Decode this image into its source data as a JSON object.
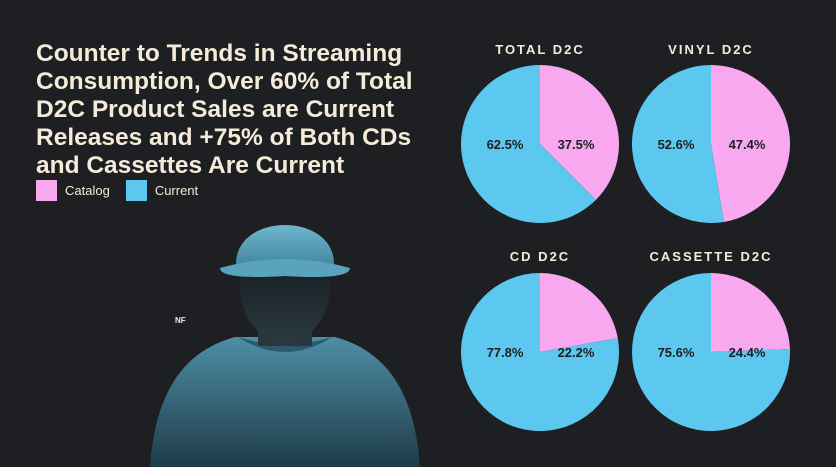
{
  "title": "Counter to Trends in Streaming Consumption, Over 60% of Total D2C Product Sales are Current Releases and +75% of Both CDs and Cassettes Are Current",
  "legend": [
    {
      "label": "Catalog",
      "color": "#f7a8ee"
    },
    {
      "label": "Current",
      "color": "#5cc7ef"
    }
  ],
  "photo": {
    "badge": "NF"
  },
  "chart_data": [
    {
      "type": "pie",
      "title": "TOTAL D2C",
      "slices": [
        {
          "label": "Catalog",
          "value": 37.5,
          "display": "37.5%"
        },
        {
          "label": "Current",
          "value": 62.5,
          "display": "62.5%"
        }
      ]
    },
    {
      "type": "pie",
      "title": "VINYL D2C",
      "slices": [
        {
          "label": "Catalog",
          "value": 47.4,
          "display": "47.4%"
        },
        {
          "label": "Current",
          "value": 52.6,
          "display": "52.6%"
        }
      ]
    },
    {
      "type": "pie",
      "title": "CD D2C",
      "slices": [
        {
          "label": "Catalog",
          "value": 22.2,
          "display": "22.2%"
        },
        {
          "label": "Current",
          "value": 77.8,
          "display": "77.8%"
        }
      ]
    },
    {
      "type": "pie",
      "title": "CASSETTE D2C",
      "slices": [
        {
          "label": "Catalog",
          "value": 24.4,
          "display": "24.4%"
        },
        {
          "label": "Current",
          "value": 75.6,
          "display": "75.6%"
        }
      ]
    }
  ]
}
